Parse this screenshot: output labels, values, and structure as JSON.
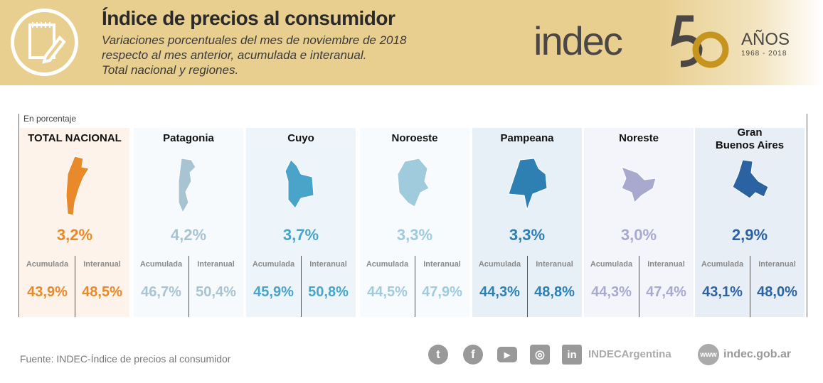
{
  "header": {
    "title": "Índice de precios al consumidor",
    "subtitle_lines": [
      "Variaciones porcentuales del mes de noviembre de 2018",
      "respecto al mes anterior, acumulada e interanual.",
      "Total nacional y regiones."
    ],
    "logo": "indec",
    "anniversary": "50",
    "anos": "AÑOS",
    "years": "1968  -  2018"
  },
  "unit": "En porcentaje",
  "labels": {
    "acc": "Acumulada",
    "inter": "Interanual"
  },
  "regions": [
    {
      "name": "TOTAL NACIONAL",
      "monthly": "3,2%",
      "acc": "43,9%",
      "inter": "48,5%",
      "color": "#e8892a",
      "bg": "#fdf3ea"
    },
    {
      "name": "Patagonia",
      "monthly": "4,2%",
      "acc": "46,7%",
      "inter": "50,4%",
      "color": "#a8c4d2",
      "bg": "#f6fafc"
    },
    {
      "name": "Cuyo",
      "monthly": "3,7%",
      "acc": "45,9%",
      "inter": "50,8%",
      "color": "#4aa3c8",
      "bg": "#edf5fa"
    },
    {
      "name": "Noroeste",
      "monthly": "3,3%",
      "acc": "44,5%",
      "inter": "47,9%",
      "color": "#9fcbdd",
      "bg": "#f7fbfd"
    },
    {
      "name": "Pampeana",
      "monthly": "3,3%",
      "acc": "44,3%",
      "inter": "48,8%",
      "color": "#2e7fb2",
      "bg": "#e7f0f7"
    },
    {
      "name": "Noreste",
      "monthly": "3,0%",
      "acc": "44,3%",
      "inter": "47,4%",
      "color": "#a7a9cf",
      "bg": "#f4f5fa"
    },
    {
      "name": "Gran\nBuenos Aires",
      "monthly": "2,9%",
      "acc": "43,1%",
      "inter": "48,0%",
      "color": "#2b62a2",
      "bg": "#e8eef6"
    }
  ],
  "footer": {
    "source": "Fuente: INDEC-Índice de precios al consumidor",
    "handle": "INDECArgentina",
    "www": "www",
    "website": "indec.gob.ar"
  }
}
